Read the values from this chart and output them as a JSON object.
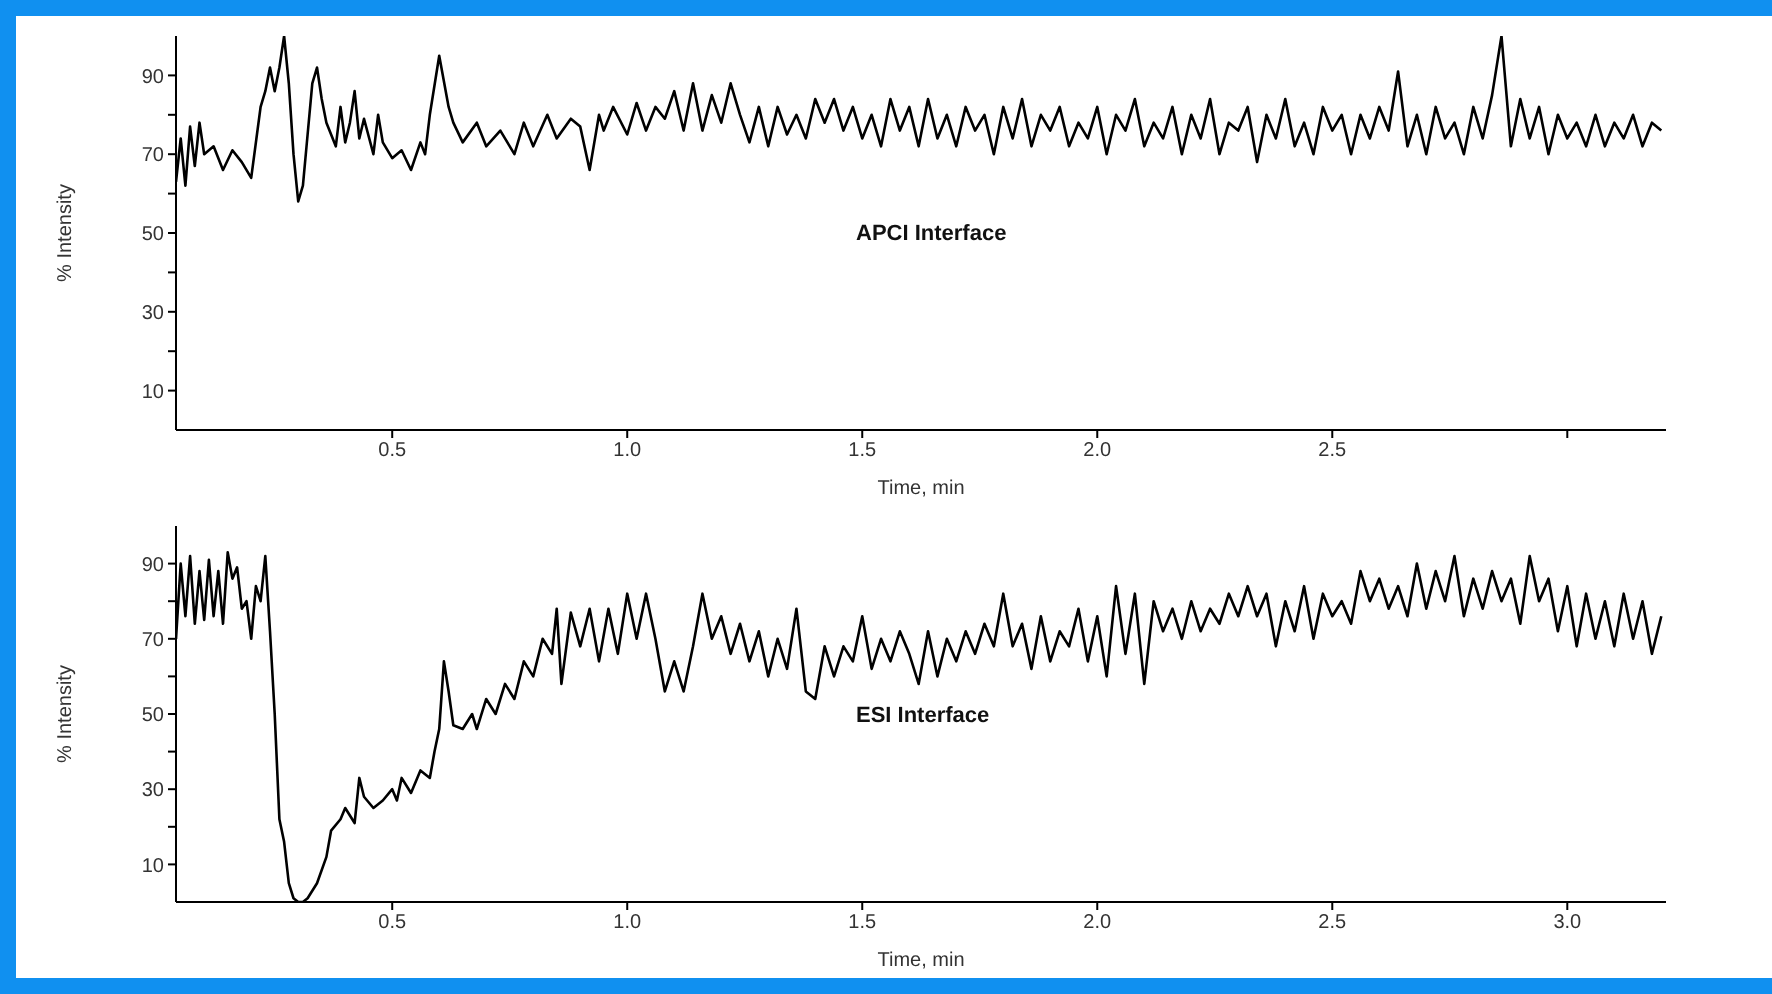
{
  "chart_data": [
    {
      "type": "line",
      "xlabel": "Time, min",
      "ylabel": "% Intensity",
      "annotations": [
        "APCI Interface"
      ],
      "xlim": [
        0.04,
        3.21
      ],
      "xticks": [
        0.5,
        {
          "value": 1,
          "label": "1.0"
        },
        1.5,
        {
          "value": 2,
          "label": "2.0"
        },
        2.5,
        {
          "value": 3,
          "label": null
        }
      ],
      "ylim": [
        0,
        100
      ],
      "yticks": [
        10,
        {
          "value": 20,
          "label": null
        },
        30,
        {
          "value": 40,
          "label": null
        },
        50,
        {
          "value": 60,
          "label": null
        },
        70,
        {
          "value": 80,
          "label": null
        },
        90
      ],
      "series": [
        {
          "color": "#000000",
          "x": [
            0.04,
            0.05,
            0.06,
            0.07,
            0.08,
            0.09,
            0.1,
            0.12,
            0.14,
            0.16,
            0.18,
            0.2,
            0.22,
            0.23,
            0.24,
            0.25,
            0.26,
            0.27,
            0.28,
            0.29,
            0.3,
            0.31,
            0.32,
            0.33,
            0.34,
            0.35,
            0.36,
            0.38,
            0.39,
            0.4,
            0.41,
            0.42,
            0.43,
            0.44,
            0.46,
            0.47,
            0.48,
            0.5,
            0.52,
            0.54,
            0.56,
            0.57,
            0.58,
            0.6,
            0.62,
            0.63,
            0.65,
            0.68,
            0.7,
            0.73,
            0.76,
            0.78,
            0.8,
            0.83,
            0.85,
            0.88,
            0.9,
            0.92,
            0.94,
            0.95,
            0.97,
            1.0,
            1.02,
            1.04,
            1.06,
            1.08,
            1.1,
            1.12,
            1.14,
            1.16,
            1.18,
            1.2,
            1.22,
            1.24,
            1.26,
            1.28,
            1.3,
            1.32,
            1.34,
            1.36,
            1.38,
            1.4,
            1.42,
            1.44,
            1.46,
            1.48,
            1.5,
            1.52,
            1.54,
            1.56,
            1.58,
            1.6,
            1.62,
            1.64,
            1.66,
            1.68,
            1.7,
            1.72,
            1.74,
            1.76,
            1.78,
            1.8,
            1.82,
            1.84,
            1.86,
            1.88,
            1.9,
            1.92,
            1.94,
            1.96,
            1.98,
            2.0,
            2.02,
            2.04,
            2.06,
            2.08,
            2.1,
            2.12,
            2.14,
            2.16,
            2.18,
            2.2,
            2.22,
            2.24,
            2.26,
            2.28,
            2.3,
            2.32,
            2.34,
            2.36,
            2.38,
            2.4,
            2.42,
            2.44,
            2.46,
            2.48,
            2.5,
            2.52,
            2.54,
            2.56,
            2.58,
            2.6,
            2.62,
            2.64,
            2.66,
            2.68,
            2.7,
            2.72,
            2.74,
            2.76,
            2.78,
            2.8,
            2.82,
            2.84,
            2.86,
            2.87,
            2.88,
            2.9,
            2.92,
            2.94,
            2.96,
            2.98,
            3.0,
            3.02,
            3.04,
            3.06,
            3.08,
            3.1,
            3.12,
            3.14,
            3.16,
            3.18,
            3.2
          ],
          "values": [
            63,
            74,
            62,
            77,
            67,
            78,
            70,
            72,
            66,
            71,
            68,
            64,
            82,
            86,
            92,
            86,
            92,
            100,
            88,
            70,
            58,
            62,
            75,
            88,
            92,
            84,
            78,
            72,
            82,
            73,
            78,
            86,
            74,
            79,
            70,
            80,
            73,
            69,
            71,
            66,
            73,
            70,
            80,
            95,
            82,
            78,
            73,
            78,
            72,
            76,
            70,
            78,
            72,
            80,
            74,
            79,
            77,
            66,
            80,
            76,
            82,
            75,
            83,
            76,
            82,
            79,
            86,
            76,
            88,
            76,
            85,
            78,
            88,
            80,
            73,
            82,
            72,
            82,
            75,
            80,
            74,
            84,
            78,
            84,
            76,
            82,
            74,
            80,
            72,
            84,
            76,
            82,
            72,
            84,
            74,
            80,
            72,
            82,
            76,
            80,
            70,
            82,
            74,
            84,
            72,
            80,
            76,
            82,
            72,
            78,
            74,
            82,
            70,
            80,
            76,
            84,
            72,
            78,
            74,
            82,
            70,
            80,
            74,
            84,
            70,
            78,
            76,
            82,
            68,
            80,
            74,
            84,
            72,
            78,
            70,
            82,
            76,
            80,
            70,
            80,
            74,
            82,
            76,
            91,
            72,
            80,
            70,
            82,
            74,
            78,
            70,
            82,
            74,
            85,
            100,
            86,
            72,
            84,
            74,
            82,
            70,
            80,
            74,
            78,
            72,
            80,
            72,
            78,
            74,
            80,
            72,
            78,
            76
          ]
        }
      ]
    },
    {
      "type": "line",
      "xlabel": "Time, min",
      "ylabel": "% Intensity",
      "annotations": [
        "ESI Interface"
      ],
      "xlim": [
        0.04,
        3.21
      ],
      "xticks": [
        0.5,
        {
          "value": 1,
          "label": "1.0"
        },
        1.5,
        {
          "value": 2,
          "label": "2.0"
        },
        2.5,
        {
          "value": 3,
          "label": "3.0"
        }
      ],
      "ylim": [
        0,
        100
      ],
      "yticks": [
        10,
        {
          "value": 20,
          "label": null
        },
        30,
        {
          "value": 40,
          "label": null
        },
        50,
        {
          "value": 60,
          "label": null
        },
        70,
        {
          "value": 80,
          "label": null
        },
        90
      ],
      "series": [
        {
          "color": "#000000",
          "x": [
            0.04,
            0.05,
            0.06,
            0.07,
            0.08,
            0.09,
            0.1,
            0.11,
            0.12,
            0.13,
            0.14,
            0.15,
            0.16,
            0.17,
            0.18,
            0.19,
            0.2,
            0.21,
            0.22,
            0.23,
            0.24,
            0.25,
            0.26,
            0.27,
            0.28,
            0.29,
            0.3,
            0.31,
            0.32,
            0.34,
            0.36,
            0.37,
            0.39,
            0.4,
            0.42,
            0.43,
            0.44,
            0.46,
            0.48,
            0.5,
            0.51,
            0.52,
            0.54,
            0.56,
            0.58,
            0.59,
            0.6,
            0.61,
            0.62,
            0.63,
            0.65,
            0.67,
            0.68,
            0.7,
            0.72,
            0.74,
            0.76,
            0.78,
            0.8,
            0.82,
            0.84,
            0.85,
            0.86,
            0.88,
            0.9,
            0.92,
            0.94,
            0.96,
            0.98,
            1.0,
            1.02,
            1.04,
            1.06,
            1.08,
            1.1,
            1.12,
            1.14,
            1.16,
            1.18,
            1.2,
            1.22,
            1.24,
            1.26,
            1.28,
            1.3,
            1.32,
            1.34,
            1.36,
            1.38,
            1.4,
            1.42,
            1.44,
            1.46,
            1.48,
            1.5,
            1.52,
            1.54,
            1.56,
            1.58,
            1.6,
            1.62,
            1.64,
            1.66,
            1.68,
            1.7,
            1.72,
            1.74,
            1.76,
            1.78,
            1.8,
            1.82,
            1.84,
            1.86,
            1.88,
            1.9,
            1.92,
            1.94,
            1.96,
            1.98,
            2.0,
            2.02,
            2.04,
            2.06,
            2.08,
            2.1,
            2.12,
            2.14,
            2.16,
            2.18,
            2.2,
            2.22,
            2.24,
            2.26,
            2.28,
            2.3,
            2.32,
            2.34,
            2.36,
            2.38,
            2.4,
            2.42,
            2.44,
            2.46,
            2.48,
            2.5,
            2.52,
            2.54,
            2.56,
            2.58,
            2.6,
            2.62,
            2.64,
            2.66,
            2.68,
            2.7,
            2.72,
            2.74,
            2.76,
            2.78,
            2.8,
            2.82,
            2.84,
            2.86,
            2.88,
            2.9,
            2.92,
            2.94,
            2.96,
            2.98,
            3.0,
            3.02,
            3.04,
            3.06,
            3.08,
            3.1,
            3.12,
            3.14,
            3.16,
            3.18,
            3.2
          ],
          "values": [
            70,
            90,
            76,
            92,
            74,
            88,
            75,
            91,
            76,
            88,
            74,
            93,
            86,
            89,
            78,
            80,
            70,
            84,
            80,
            92,
            72,
            50,
            22,
            16,
            5,
            1,
            0,
            0,
            1,
            5,
            12,
            19,
            22,
            25,
            21,
            33,
            28,
            25,
            27,
            30,
            27,
            33,
            29,
            35,
            33,
            40,
            46,
            64,
            56,
            47,
            46,
            50,
            46,
            54,
            50,
            58,
            54,
            64,
            60,
            70,
            66,
            78,
            58,
            77,
            68,
            78,
            64,
            78,
            66,
            82,
            70,
            82,
            70,
            56,
            64,
            56,
            68,
            82,
            70,
            76,
            66,
            74,
            64,
            72,
            60,
            70,
            62,
            78,
            56,
            54,
            68,
            60,
            68,
            64,
            76,
            62,
            70,
            64,
            72,
            66,
            58,
            72,
            60,
            70,
            64,
            72,
            66,
            74,
            68,
            82,
            68,
            74,
            62,
            76,
            64,
            72,
            68,
            78,
            64,
            76,
            60,
            84,
            66,
            82,
            58,
            80,
            72,
            78,
            70,
            80,
            72,
            78,
            74,
            82,
            76,
            84,
            76,
            82,
            68,
            80,
            72,
            84,
            70,
            82,
            76,
            80,
            74,
            88,
            80,
            86,
            78,
            84,
            76,
            90,
            78,
            88,
            80,
            92,
            76,
            86,
            78,
            88,
            80,
            86,
            74,
            92,
            80,
            86,
            72,
            84,
            68,
            82,
            70,
            80,
            68,
            82,
            70,
            80,
            66,
            76
          ]
        }
      ]
    }
  ]
}
